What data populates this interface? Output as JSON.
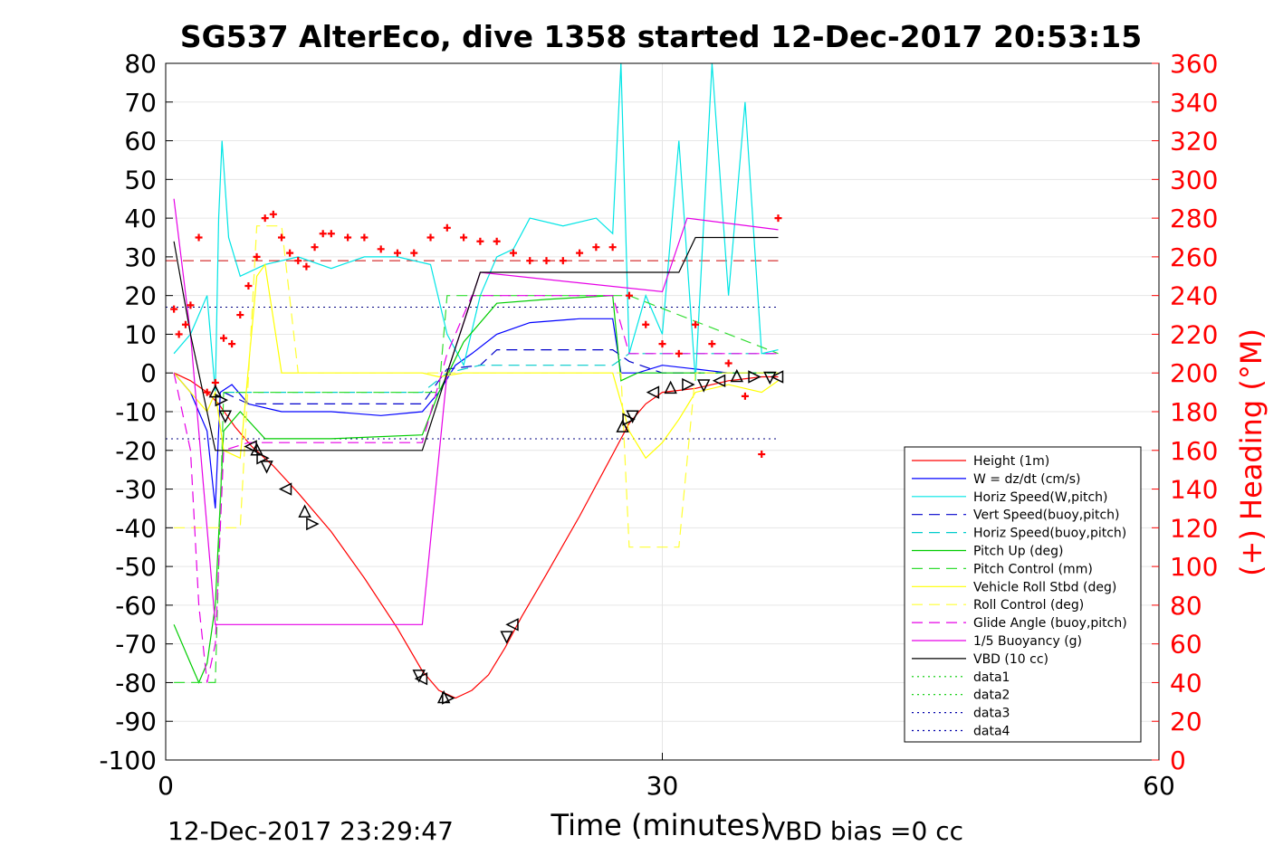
{
  "chart_data": {
    "type": "line",
    "title": "SG537 AlterEco, dive 1358 started 12-Dec-2017 20:53:15",
    "xlabel": "Time (minutes)",
    "ylabel_right": "(+) Heading (°M)",
    "xlim": [
      0,
      60
    ],
    "ylim": [
      -100,
      80
    ],
    "ylim_right": [
      0,
      360
    ],
    "xticks": [
      0,
      30,
      60
    ],
    "yticks": [
      -100,
      -90,
      -80,
      -70,
      -60,
      -50,
      -40,
      -30,
      -20,
      -10,
      0,
      10,
      20,
      30,
      40,
      50,
      60,
      70,
      80
    ],
    "yticks_right": [
      0,
      20,
      40,
      60,
      80,
      100,
      120,
      140,
      160,
      180,
      200,
      220,
      240,
      260,
      280,
      300,
      320,
      340,
      360
    ],
    "grid": true,
    "legend_position": "bottom-right",
    "footer_left": "12-Dec-2017 23:29:47",
    "footer_right": "VBD bias =0 cc",
    "colors": {
      "axis": "#000000",
      "grid": "#e6e6e6",
      "right_axis": "#ff0000",
      "heading_marker": "#ff0000"
    },
    "series": [
      {
        "name": "Height (1m)",
        "color": "#ff0000",
        "style": "solid",
        "x": [
          0.5,
          1.5,
          2.5,
          3.2,
          4.2,
          5.2,
          6.5,
          8,
          10,
          12,
          14,
          15.5,
          16.5,
          17.5,
          18.5,
          19.5,
          20.5,
          21.5,
          23,
          25,
          27,
          28,
          29,
          30,
          32,
          34,
          36,
          37
        ],
        "y": [
          0,
          -2,
          -5,
          -8,
          -14,
          -19,
          -24,
          -31,
          -41,
          -53,
          -66,
          -77,
          -82,
          -84,
          -82,
          -78,
          -71,
          -63,
          -52,
          -37,
          -21,
          -13,
          -8,
          -5,
          -4,
          -2,
          -1,
          -1
        ]
      },
      {
        "name": "W = dz/dt (cm/s)",
        "color": "#0000ff",
        "style": "solid",
        "x": [
          0.5,
          1.5,
          2.5,
          3,
          3.3,
          4,
          5,
          7,
          10,
          13,
          15.5,
          16.5,
          17.5,
          18.5,
          20,
          22,
          25,
          27,
          27.5,
          28.5,
          30,
          32,
          34,
          36,
          37
        ],
        "y": [
          0,
          -5,
          -15,
          -35,
          -5,
          -3,
          -8,
          -10,
          -10,
          -11,
          -10,
          -5,
          2,
          5,
          10,
          13,
          14,
          14,
          0,
          0,
          2,
          1,
          0,
          0,
          0
        ]
      },
      {
        "name": "Horiz Speed(W,pitch)",
        "color": "#00e5e5",
        "style": "solid",
        "x": [
          0.5,
          1.5,
          2.5,
          3,
          3.2,
          3.4,
          3.8,
          4.5,
          6,
          8,
          10,
          12,
          14,
          16,
          17,
          18,
          19,
          20,
          21,
          22,
          24,
          26,
          27,
          27.5,
          28,
          29,
          30,
          31,
          32,
          33,
          34,
          35,
          36,
          37
        ],
        "y": [
          5,
          10,
          20,
          -5,
          40,
          60,
          35,
          25,
          28,
          30,
          27,
          30,
          30,
          28,
          10,
          2,
          20,
          30,
          32,
          40,
          38,
          40,
          36,
          80,
          5,
          20,
          10,
          60,
          -2,
          80,
          20,
          70,
          5,
          6
        ]
      },
      {
        "name": "Vert Speed(buoy,pitch)",
        "color": "#0000cc",
        "style": "dashed",
        "x": [
          3.5,
          5,
          10,
          15.5,
          17,
          19,
          20,
          27,
          28,
          30,
          36.5
        ],
        "y": [
          -5,
          -8,
          -8,
          -8,
          1,
          2,
          6,
          6,
          3,
          0,
          0
        ]
      },
      {
        "name": "Horiz Speed(buoy,pitch)",
        "color": "#00cccc",
        "style": "dashed",
        "x": [
          3.5,
          5,
          15.5,
          17,
          19,
          27,
          28,
          37
        ],
        "y": [
          -5,
          -5,
          -5,
          0,
          2,
          2,
          5,
          5
        ]
      },
      {
        "name": "Pitch Up (deg)",
        "color": "#00cc00",
        "style": "solid",
        "x": [
          0.5,
          1.5,
          2,
          2.5,
          3,
          3.5,
          4.5,
          6,
          10,
          15.5,
          16.5,
          18,
          20,
          23,
          27,
          27.5,
          28.5,
          30,
          32,
          34,
          36,
          37
        ],
        "y": [
          -65,
          -75,
          -80,
          -75,
          -60,
          -15,
          -10,
          -17,
          -17,
          -16,
          -5,
          8,
          18,
          19,
          20,
          -2,
          0,
          0,
          0,
          0,
          0,
          0
        ]
      },
      {
        "name": "Pitch Control (mm)",
        "color": "#33dd33",
        "style": "dashed",
        "x": [
          0.5,
          2,
          3,
          3.5,
          15.5,
          16.5,
          17,
          28,
          37
        ],
        "y": [
          -80,
          -80,
          -80,
          -5,
          -5,
          -5,
          20,
          20,
          5
        ]
      },
      {
        "name": "Vehicle Roll Stbd (deg)",
        "color": "#ffff00",
        "style": "solid",
        "x": [
          0.5,
          1.5,
          2.5,
          3,
          3.5,
          4.5,
          5.5,
          6,
          7,
          8,
          10,
          15.5,
          16.5,
          18,
          27,
          28,
          29,
          30,
          31,
          32,
          34,
          36,
          37
        ],
        "y": [
          0,
          -5,
          -10,
          -5,
          -20,
          -22,
          25,
          28,
          0,
          0,
          0,
          0,
          -1,
          0,
          0,
          -15,
          -22,
          -18,
          -12,
          -5,
          -3,
          -5,
          -2
        ]
      },
      {
        "name": "Roll Control (deg)",
        "color": "#ffff33",
        "style": "dashed",
        "x": [
          0.5,
          2,
          3,
          3.5,
          4.5,
          5.5,
          7,
          8,
          15.5,
          27.5,
          28,
          29,
          31,
          32,
          37
        ],
        "y": [
          -40,
          -40,
          -40,
          -40,
          -40,
          38,
          38,
          0,
          0,
          0,
          -45,
          -45,
          -45,
          0,
          0
        ]
      },
      {
        "name": "Glide Angle (buoy,pitch)",
        "color": "#e600e6",
        "style": "dashed",
        "x": [
          0.5,
          1.5,
          2,
          2.5,
          3,
          3.5,
          5,
          15.5,
          17,
          18.5,
          20,
          27,
          28,
          37
        ],
        "y": [
          0,
          -20,
          -60,
          -80,
          -70,
          -20,
          -18,
          -18,
          5,
          20,
          20,
          20,
          5,
          5
        ]
      },
      {
        "name": "1/5 Buoyancy (g)",
        "color": "#e600e6",
        "style": "solid",
        "x": [
          0.5,
          1.5,
          3,
          15.5,
          17,
          19,
          30,
          31.5,
          37
        ],
        "y": [
          45,
          10,
          -65,
          -65,
          0,
          26,
          21,
          40,
          37
        ]
      },
      {
        "name": "VBD (10 cc)",
        "color": "#000000",
        "style": "solid",
        "x": [
          0.5,
          1.5,
          3,
          15.5,
          17,
          19,
          31,
          32,
          37
        ],
        "y": [
          34,
          10,
          -20,
          -20,
          0,
          26,
          26,
          35,
          35
        ]
      },
      {
        "name": "data1",
        "color": "#00cc00",
        "style": "dotted",
        "x": [],
        "y": []
      },
      {
        "name": "data2",
        "color": "#00cc00",
        "style": "dotted",
        "x": [],
        "y": []
      },
      {
        "name": "data3",
        "color": "#0000aa",
        "style": "dotted",
        "x": [],
        "y": []
      },
      {
        "name": "data4",
        "color": "#0000aa",
        "style": "dotted",
        "x": [],
        "y": []
      }
    ],
    "reference_lines": [
      {
        "y": 29,
        "color": "#cc0000",
        "style": "dashed"
      },
      {
        "y": 17,
        "color": "#000080",
        "style": "dotted"
      },
      {
        "y": -17,
        "color": "#000080",
        "style": "dotted"
      }
    ],
    "heading_points": {
      "x": [
        0.5,
        0.8,
        1.2,
        1.5,
        2,
        2.5,
        3,
        3.5,
        4,
        4.5,
        5,
        5.5,
        6,
        6.5,
        7,
        7.5,
        8,
        8.5,
        9,
        9.5,
        10,
        11,
        12,
        13,
        14,
        15,
        16,
        17,
        18,
        19,
        20,
        21,
        22,
        23,
        24,
        25,
        26,
        27,
        28,
        29,
        30,
        31,
        32,
        33,
        34,
        35,
        36,
        37
      ],
      "y": [
        233,
        220,
        225,
        235,
        270,
        190,
        195,
        218,
        215,
        230,
        245,
        260,
        280,
        282,
        270,
        262,
        258,
        255,
        265,
        272,
        272,
        270,
        270,
        264,
        262,
        262,
        270,
        275,
        270,
        268,
        268,
        262,
        258,
        258,
        258,
        262,
        265,
        265,
        240,
        225,
        215,
        210,
        225,
        215,
        205,
        188,
        158,
        280
      ]
    },
    "dive_markers": {
      "x": [
        3,
        3.3,
        3.6,
        5.2,
        5.5,
        5.8,
        6.1,
        7.3,
        8.4,
        8.8,
        15.3,
        15.5,
        16.8,
        17,
        20.6,
        21,
        27.6,
        27.9,
        28.2,
        29.5,
        30.5,
        31.5,
        32.5,
        33.5,
        34.5,
        35.5,
        36.5,
        37
      ],
      "y": [
        -5,
        -7,
        -11,
        -19,
        -20,
        -22,
        -24,
        -30,
        -36,
        -39,
        -78,
        -79,
        -84,
        -84,
        -68,
        -65,
        -14,
        -12,
        -11,
        -5,
        -4,
        -3,
        -3,
        -2,
        -1,
        -1,
        -1,
        -1
      ]
    }
  }
}
